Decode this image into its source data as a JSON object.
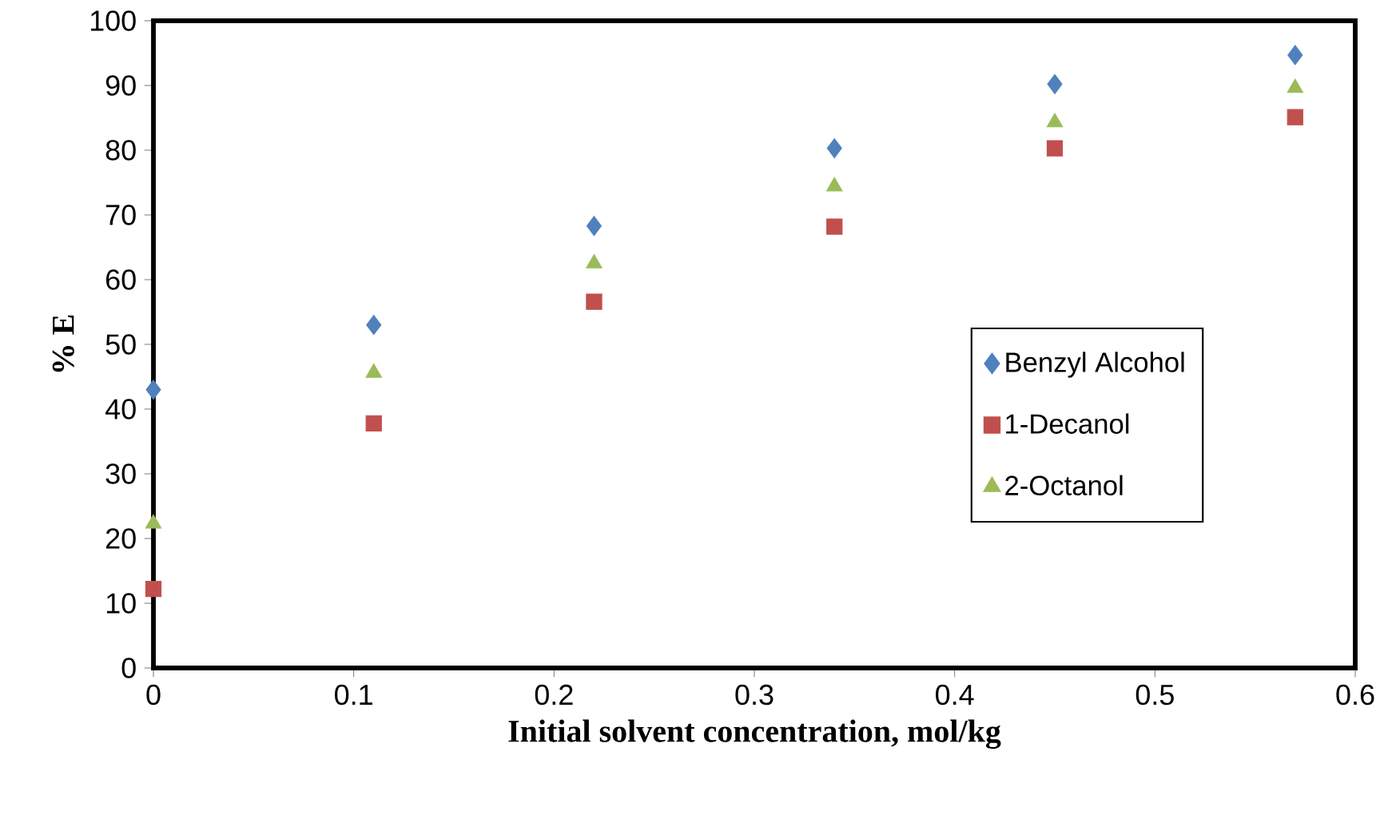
{
  "chart_data": {
    "type": "scatter",
    "xlabel": "Initial solvent concentration, mol/kg",
    "ylabel": "% E",
    "x": [
      0,
      0.11,
      0.22,
      0.34,
      0.45,
      0.57
    ],
    "series": [
      {
        "name": "Benzyl Alcohol",
        "color": "#4f81bd",
        "marker": "diamond",
        "values": [
          43,
          53,
          68.3,
          80.3,
          90.2,
          94.7
        ]
      },
      {
        "name": "1-Decanol",
        "color": "#c0504d",
        "marker": "square",
        "values": [
          12.2,
          37.8,
          56.6,
          68.2,
          80.3,
          85.1
        ]
      },
      {
        "name": "2-Octanol",
        "color": "#9bbb59",
        "marker": "triangle",
        "values": [
          22.3,
          45.6,
          62.5,
          74.4,
          84.3,
          89.6
        ]
      }
    ],
    "xlim": [
      0,
      0.6
    ],
    "ylim": [
      0,
      100
    ],
    "xticks": [
      0,
      0.1,
      0.2,
      0.3,
      0.4,
      0.5,
      0.6
    ],
    "yticks": [
      0,
      10,
      20,
      30,
      40,
      50,
      60,
      70,
      80,
      90,
      100
    ],
    "legend": "right"
  }
}
